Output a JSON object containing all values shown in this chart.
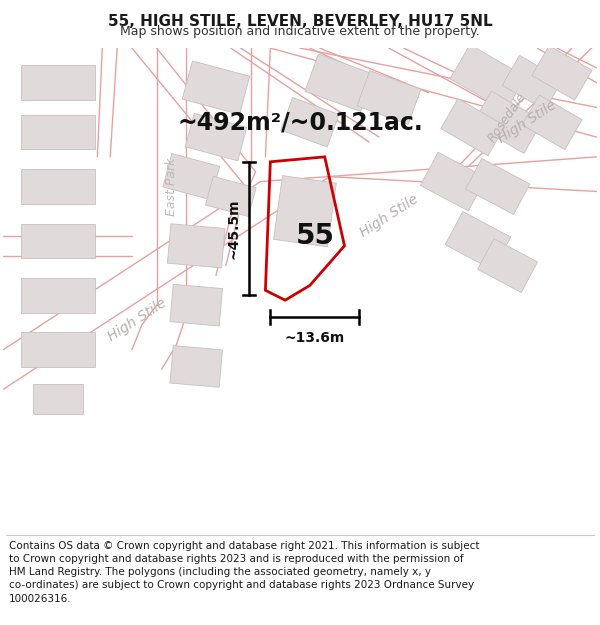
{
  "title": "55, HIGH STILE, LEVEN, BEVERLEY, HU17 5NL",
  "subtitle": "Map shows position and indicative extent of the property.",
  "footer": "Contains OS data © Crown copyright and database right 2021. This information is subject\nto Crown copyright and database rights 2023 and is reproduced with the permission of\nHM Land Registry. The polygons (including the associated geometry, namely x, y\nco-ordinates) are subject to Crown copyright and database rights 2023 Ordnance Survey\n100026316.",
  "area_label": "~492m²/~0.121ac.",
  "property_number": "55",
  "dim_height": "~45.5m",
  "dim_width": "~13.6m",
  "map_bg": "#f7f4f4",
  "building_fill": "#e0dada",
  "building_edge": "#c8c0c0",
  "road_line_color": "#e8a0a0",
  "plot_line_color": "#cc0000",
  "street_label_color": "#b8b0b0",
  "east_park_label_color": "#c0b8b8",
  "title_fontsize": 11,
  "subtitle_fontsize": 9,
  "footer_fontsize": 7.5
}
